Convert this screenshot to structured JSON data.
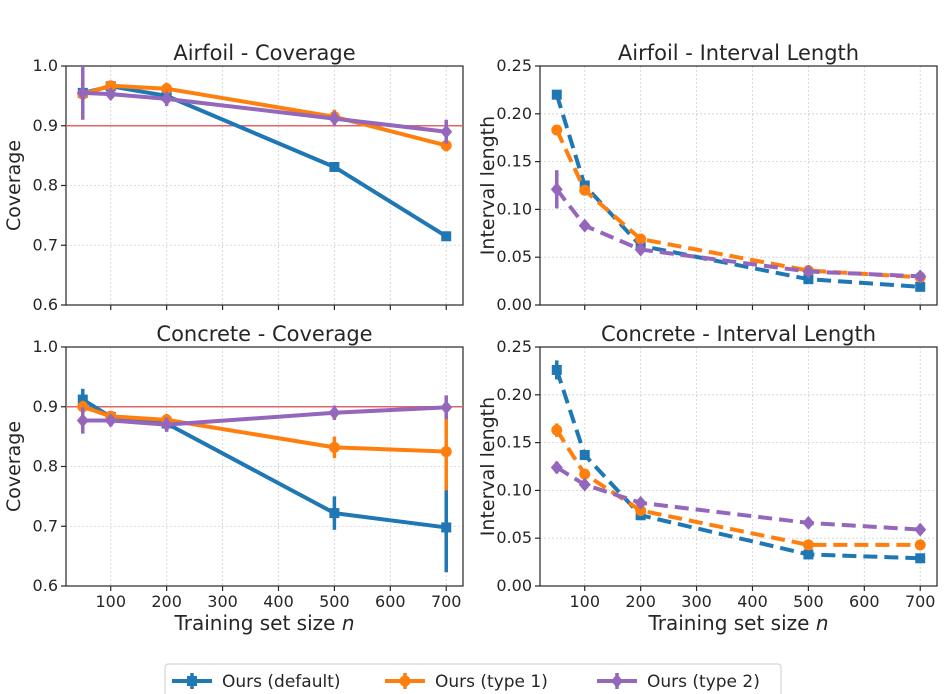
{
  "colors": {
    "default": "#1f77b4",
    "type1": "#ff7f0e",
    "type2": "#9467bd",
    "target": "#e06666"
  },
  "legend": {
    "items": [
      {
        "key": "default",
        "label": "Ours (default)",
        "marker": "square"
      },
      {
        "key": "type1",
        "label": "Ours (type 1)",
        "marker": "circle"
      },
      {
        "key": "type2",
        "label": "Ours (type 2)",
        "marker": "diamond"
      }
    ]
  },
  "chart_data": [
    {
      "id": "airfoil-coverage",
      "type": "line",
      "title": "Airfoil - Coverage",
      "xlabel": "",
      "ylabel": "Coverage",
      "xlim": [
        20,
        730
      ],
      "ylim": [
        0.6,
        1.0
      ],
      "xticks": [
        100,
        200,
        300,
        400,
        500,
        600,
        700
      ],
      "show_xtick_labels": false,
      "yticks": [
        0.6,
        0.7,
        0.8,
        0.9,
        1.0
      ],
      "ytick_labels": [
        "0.6",
        "0.7",
        "0.8",
        "0.9",
        "1.0"
      ],
      "target_line": 0.9,
      "linestyle": "solid",
      "x": [
        50,
        100,
        200,
        500,
        700
      ],
      "series": [
        {
          "key": "default",
          "name": "Ours (default)",
          "values": [
            0.955,
            0.966,
            0.95,
            0.831,
            0.715
          ],
          "errors": [
            0.006,
            0.006,
            0.005,
            0.004,
            0.004
          ]
        },
        {
          "key": "type1",
          "name": "Ours (type 1)",
          "values": [
            0.953,
            0.967,
            0.962,
            0.915,
            0.867
          ],
          "errors": [
            0.01,
            0.008,
            0.01,
            0.012,
            0.01
          ]
        },
        {
          "key": "type2",
          "name": "Ours (type 2)",
          "values": [
            0.955,
            0.953,
            0.945,
            0.912,
            0.89
          ],
          "errors": [
            0.045,
            0.008,
            0.012,
            0.012,
            0.02
          ]
        }
      ]
    },
    {
      "id": "airfoil-interval-length",
      "type": "line",
      "title": "Airfoil - Interval Length",
      "xlabel": "",
      "ylabel": "Interval length",
      "xlim": [
        20,
        730
      ],
      "ylim": [
        0.0,
        0.25
      ],
      "xticks": [
        100,
        200,
        300,
        400,
        500,
        600,
        700
      ],
      "show_xtick_labels": false,
      "yticks": [
        0.0,
        0.05,
        0.1,
        0.15,
        0.2,
        0.25
      ],
      "ytick_labels": [
        "0.00",
        "0.05",
        "0.10",
        "0.15",
        "0.20",
        "0.25"
      ],
      "target_line": null,
      "linestyle": "dashed",
      "x": [
        50,
        100,
        200,
        500,
        700
      ],
      "series": [
        {
          "key": "default",
          "name": "Ours (default)",
          "values": [
            0.22,
            0.125,
            0.062,
            0.027,
            0.019
          ],
          "errors": [
            0.005,
            0.004,
            0.002,
            0.002,
            0.002
          ]
        },
        {
          "key": "type1",
          "name": "Ours (type 1)",
          "values": [
            0.183,
            0.12,
            0.069,
            0.036,
            0.029
          ],
          "errors": [
            0.004,
            0.004,
            0.002,
            0.002,
            0.002
          ]
        },
        {
          "key": "type2",
          "name": "Ours (type 2)",
          "values": [
            0.121,
            0.083,
            0.058,
            0.035,
            0.03
          ],
          "errors": [
            0.02,
            0.003,
            0.002,
            0.002,
            0.003
          ]
        }
      ]
    },
    {
      "id": "concrete-coverage",
      "type": "line",
      "title": "Concrete - Coverage",
      "xlabel": "Training set size n",
      "ylabel": "Coverage",
      "xlim": [
        20,
        730
      ],
      "ylim": [
        0.6,
        1.0
      ],
      "xticks": [
        100,
        200,
        300,
        400,
        500,
        600,
        700
      ],
      "show_xtick_labels": true,
      "yticks": [
        0.6,
        0.7,
        0.8,
        0.9,
        1.0
      ],
      "ytick_labels": [
        "0.6",
        "0.7",
        "0.8",
        "0.9",
        "1.0"
      ],
      "target_line": 0.9,
      "linestyle": "solid",
      "x": [
        50,
        100,
        200,
        500,
        700
      ],
      "series": [
        {
          "key": "default",
          "name": "Ours (default)",
          "values": [
            0.912,
            0.883,
            0.872,
            0.722,
            0.698
          ],
          "errors": [
            0.018,
            0.01,
            0.012,
            0.028,
            0.075
          ]
        },
        {
          "key": "type1",
          "name": "Ours (type 1)",
          "values": [
            0.9,
            0.884,
            0.878,
            0.832,
            0.825
          ],
          "errors": [
            0.01,
            0.008,
            0.01,
            0.018,
            0.065
          ]
        },
        {
          "key": "type2",
          "name": "Ours (type 2)",
          "values": [
            0.877,
            0.877,
            0.87,
            0.89,
            0.899
          ],
          "errors": [
            0.022,
            0.01,
            0.012,
            0.012,
            0.02
          ]
        }
      ]
    },
    {
      "id": "concrete-interval-length",
      "type": "line",
      "title": "Concrete - Interval Length",
      "xlabel": "Training set size n",
      "ylabel": "Interval length",
      "xlim": [
        20,
        730
      ],
      "ylim": [
        0.0,
        0.25
      ],
      "xticks": [
        100,
        200,
        300,
        400,
        500,
        600,
        700
      ],
      "show_xtick_labels": true,
      "yticks": [
        0.0,
        0.05,
        0.1,
        0.15,
        0.2,
        0.25
      ],
      "ytick_labels": [
        "0.00",
        "0.05",
        "0.10",
        "0.15",
        "0.20",
        "0.25"
      ],
      "target_line": null,
      "linestyle": "dashed",
      "x": [
        50,
        100,
        200,
        500,
        700
      ],
      "series": [
        {
          "key": "default",
          "name": "Ours (default)",
          "values": [
            0.226,
            0.137,
            0.074,
            0.033,
            0.029
          ],
          "errors": [
            0.01,
            0.005,
            0.004,
            0.002,
            0.002
          ]
        },
        {
          "key": "type1",
          "name": "Ours (type 1)",
          "values": [
            0.163,
            0.117,
            0.079,
            0.043,
            0.043
          ],
          "errors": [
            0.007,
            0.004,
            0.004,
            0.002,
            0.003
          ]
        },
        {
          "key": "type2",
          "name": "Ours (type 2)",
          "values": [
            0.124,
            0.106,
            0.087,
            0.066,
            0.059
          ],
          "errors": [
            0.006,
            0.004,
            0.003,
            0.003,
            0.003
          ]
        }
      ]
    }
  ]
}
